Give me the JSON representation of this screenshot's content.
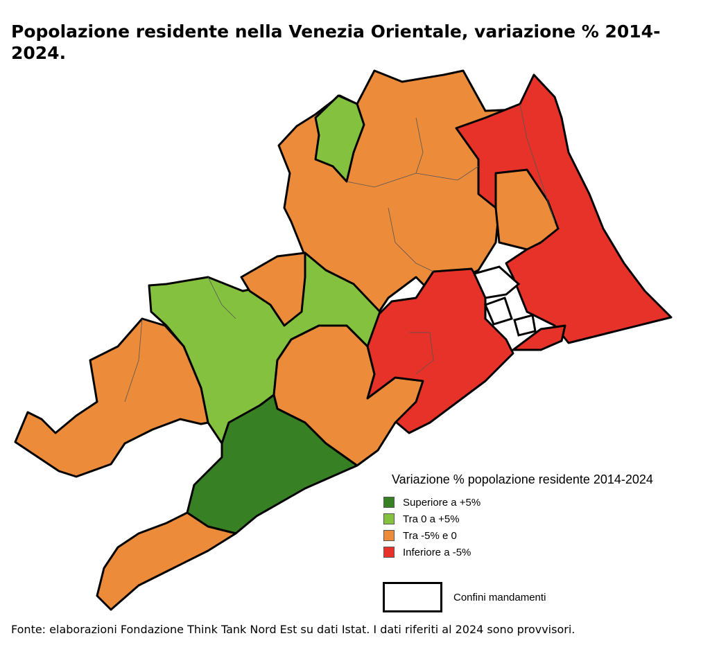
{
  "title": "Popolazione residente nella Venezia Orientale, variazione % 2014-2024.",
  "legend": {
    "title": "Variazione % popolazione residente 2014-2024",
    "items": [
      {
        "label": "Superiore a +5%",
        "color": "#388024"
      },
      {
        "label": "Tra 0 a +5%",
        "color": "#84c13f"
      },
      {
        "label": "Tra -5% e 0",
        "color": "#ec8b3a"
      },
      {
        "label": "Inferiore a -5%",
        "color": "#e63228"
      }
    ],
    "boundary_label": "Confini mandamenti"
  },
  "source": "Fonte: elaborazioni Fondazione Think Tank Nord Est su dati Istat. I dati riferiti al 2024 sono provvisori."
}
